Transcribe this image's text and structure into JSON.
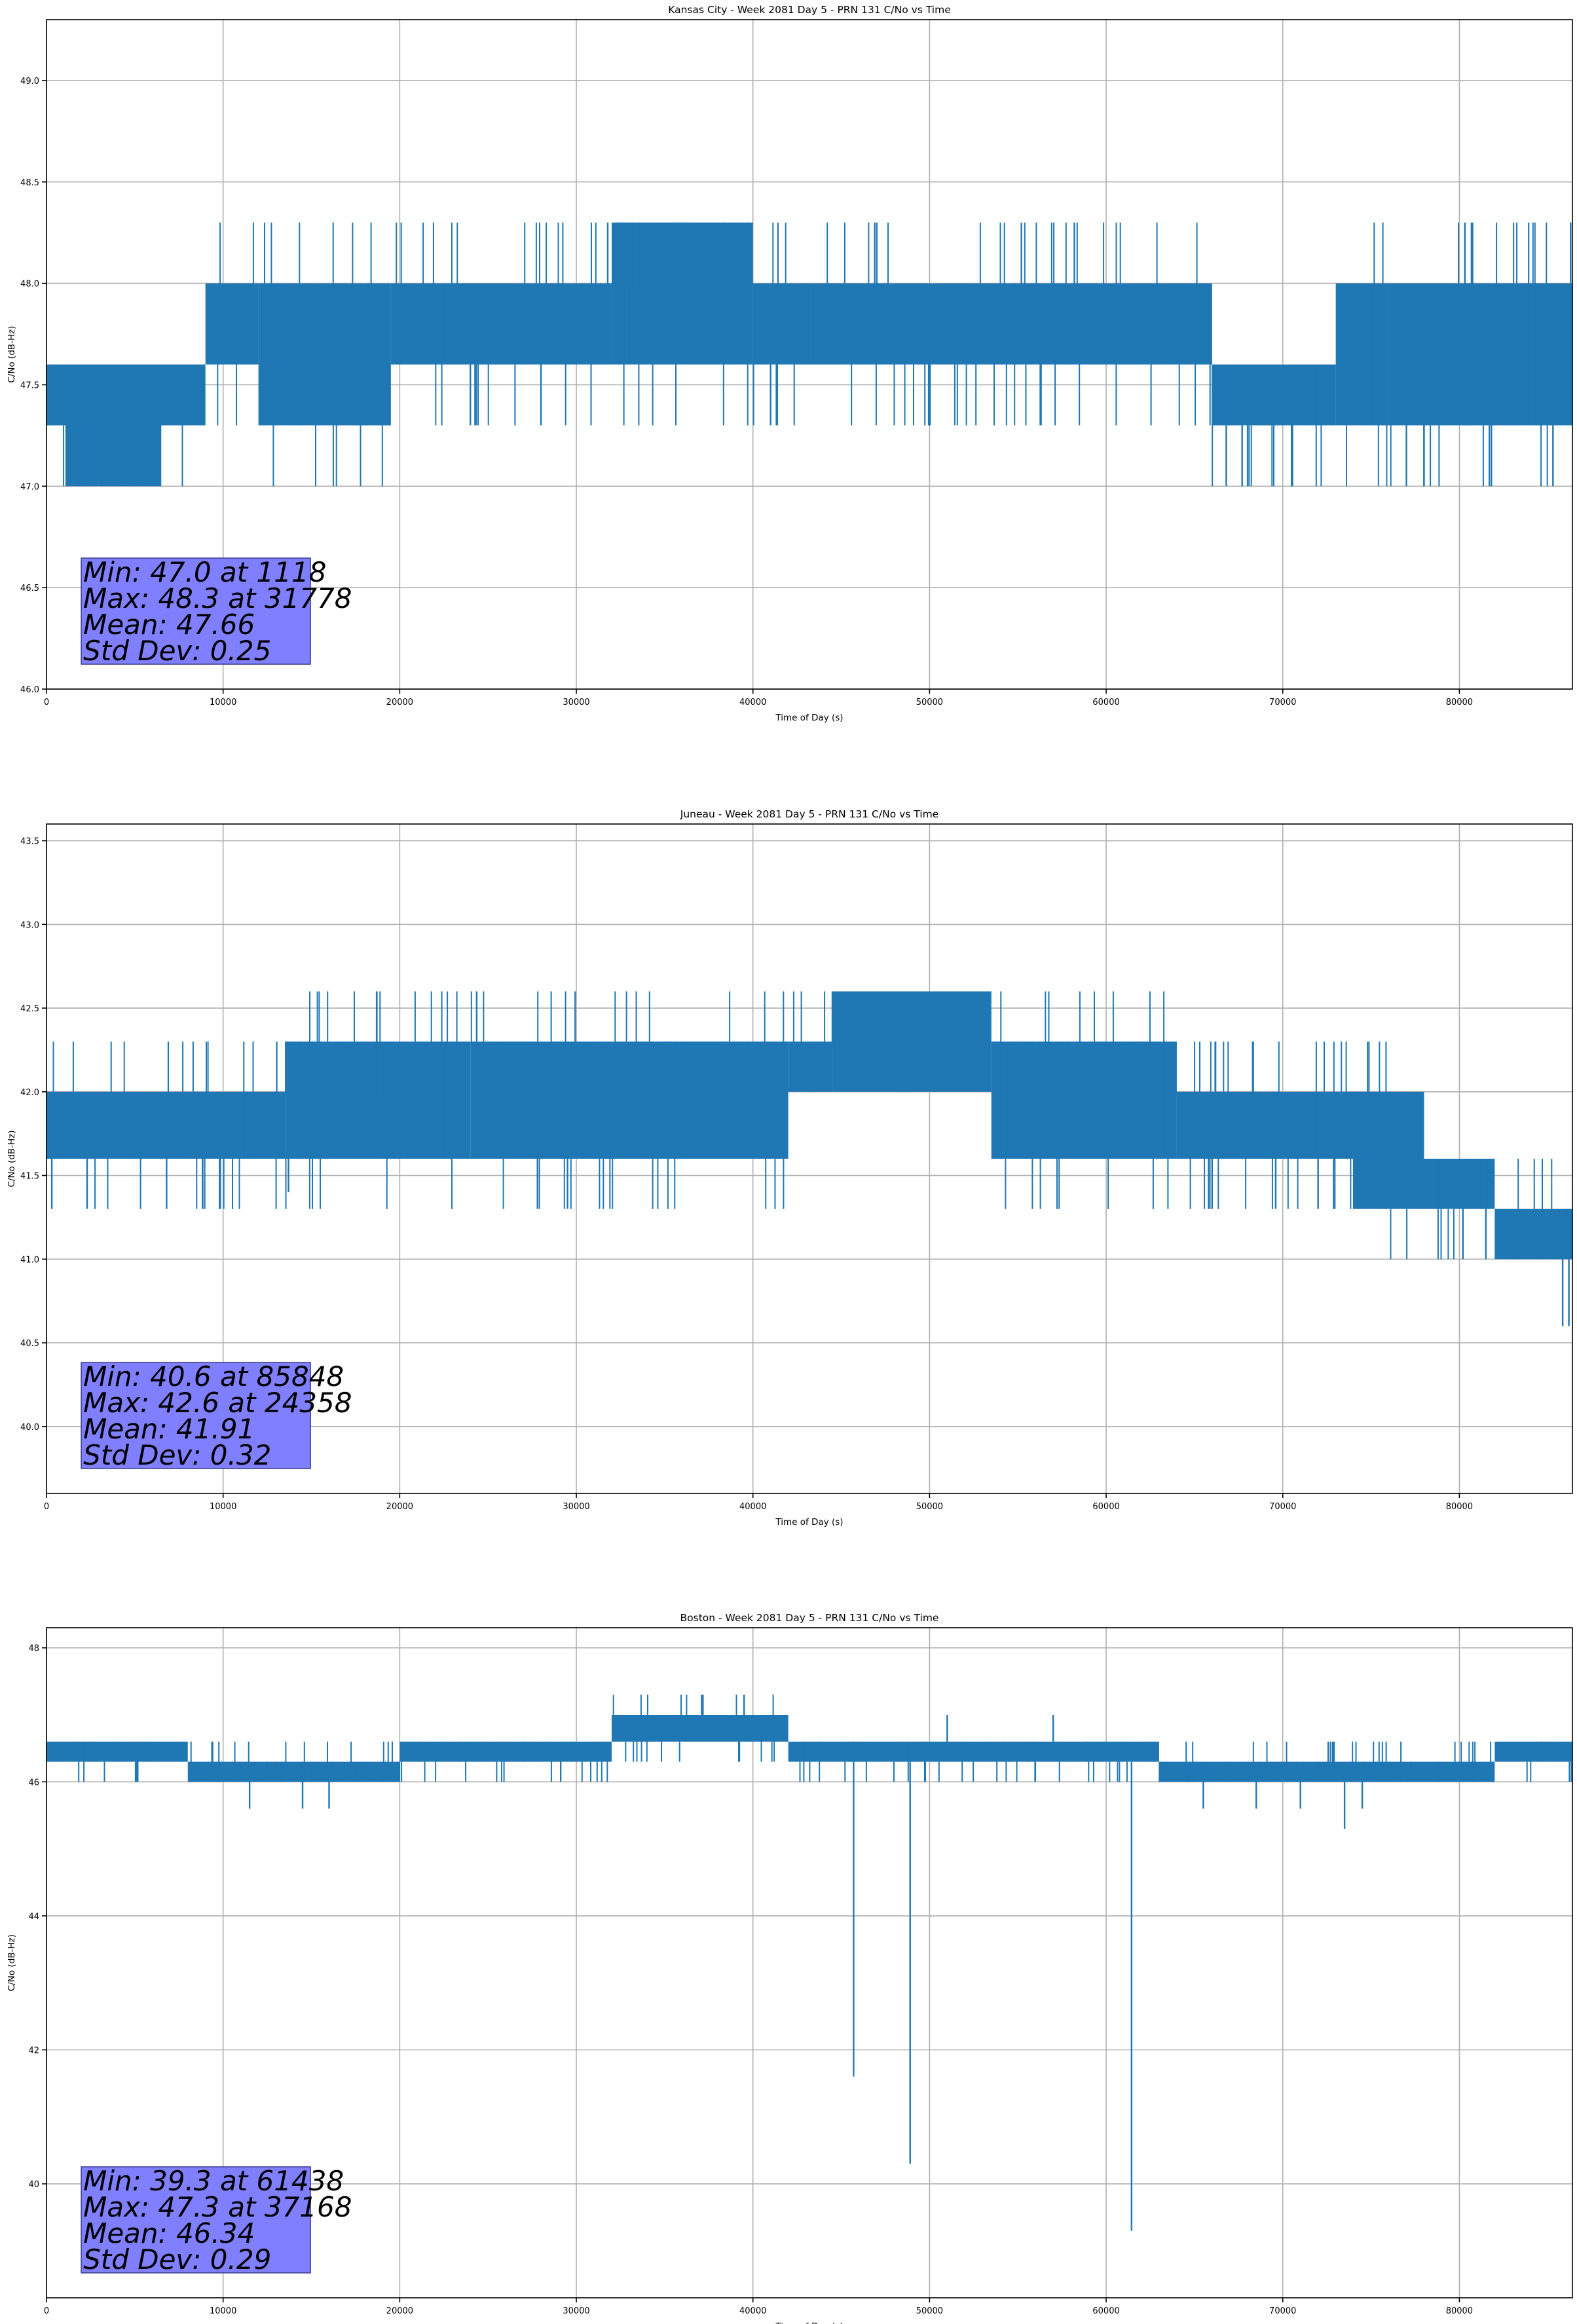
{
  "chart_data": [
    {
      "type": "line",
      "title": "Kansas City - Week 2081 Day 5 - PRN 131 C/No vs Time",
      "xlabel": "Time of Day (s)",
      "ylabel": "C/No (dB-Hz)",
      "xlim": [
        0,
        86400
      ],
      "ylim": [
        46.0,
        49.3
      ],
      "xticks": [
        0,
        10000,
        20000,
        30000,
        40000,
        50000,
        60000,
        70000,
        80000
      ],
      "yticks": [
        46.0,
        46.5,
        47.0,
        47.5,
        48.0,
        48.5,
        49.0
      ],
      "ytick_labels": [
        "46.0",
        "46.5",
        "47.0",
        "47.5",
        "48.0",
        "48.5",
        "49.0"
      ],
      "grid": true,
      "series_color": "#1f77b4",
      "levels": [
        47.0,
        47.3,
        47.6,
        48.0,
        48.3
      ],
      "segments": [
        {
          "x0": 0,
          "x1": 1100,
          "lo": 47.3,
          "hi": 47.6
        },
        {
          "x0": 1100,
          "x1": 6500,
          "lo": 47.0,
          "hi": 47.6
        },
        {
          "x0": 6500,
          "x1": 9000,
          "lo": 47.3,
          "hi": 47.6
        },
        {
          "x0": 9000,
          "x1": 12000,
          "lo": 47.6,
          "hi": 48.0
        },
        {
          "x0": 12000,
          "x1": 19500,
          "lo": 47.3,
          "hi": 48.0
        },
        {
          "x0": 19500,
          "x1": 32000,
          "lo": 47.6,
          "hi": 48.0
        },
        {
          "x0": 32000,
          "x1": 40000,
          "lo": 47.6,
          "hi": 48.3
        },
        {
          "x0": 40000,
          "x1": 66000,
          "lo": 47.6,
          "hi": 48.0
        },
        {
          "x0": 66000,
          "x1": 73000,
          "lo": 47.3,
          "hi": 47.6
        },
        {
          "x0": 73000,
          "x1": 76000,
          "lo": 47.3,
          "hi": 48.0
        },
        {
          "x0": 76000,
          "x1": 86400,
          "lo": 47.3,
          "hi": 48.0
        }
      ],
      "spikes": [
        {
          "x": 1118,
          "y": 47.0
        },
        {
          "x": 31778,
          "y": 48.3
        },
        {
          "x": 55200,
          "y": 48.3
        },
        {
          "x": 58200,
          "y": 48.3
        },
        {
          "x": 66800,
          "y": 47.0
        },
        {
          "x": 67700,
          "y": 47.0
        },
        {
          "x": 77000,
          "y": 47.0
        },
        {
          "x": 78000,
          "y": 47.0
        },
        {
          "x": 85300,
          "y": 47.0
        },
        {
          "x": 86300,
          "y": 48.3
        },
        {
          "x": 14000,
          "y": 47.3
        },
        {
          "x": 24000,
          "y": 47.3
        },
        {
          "x": 28000,
          "y": 47.3
        },
        {
          "x": 41000,
          "y": 47.3
        },
        {
          "x": 50000,
          "y": 47.3
        }
      ],
      "stats": {
        "min": "Min: 47.0 at 1118",
        "max": "Max: 48.3 at 31778",
        "mean": "Mean: 47.66",
        "std": "Std Dev: 0.25"
      }
    },
    {
      "type": "line",
      "title": "Juneau - Week 2081 Day 5 - PRN 131 C/No vs Time",
      "xlabel": "Time of Day (s)",
      "ylabel": "C/No (dB-Hz)",
      "xlim": [
        0,
        86400
      ],
      "ylim": [
        39.6,
        43.6
      ],
      "xticks": [
        0,
        10000,
        20000,
        30000,
        40000,
        50000,
        60000,
        70000,
        80000
      ],
      "yticks": [
        40.0,
        40.5,
        41.0,
        41.5,
        42.0,
        42.5,
        43.0,
        43.5
      ],
      "ytick_labels": [
        "40.0",
        "40.5",
        "41.0",
        "41.5",
        "42.0",
        "42.5",
        "43.0",
        "43.5"
      ],
      "grid": true,
      "series_color": "#1f77b4",
      "levels": [
        40.6,
        41.0,
        41.3,
        41.6,
        42.0,
        42.3,
        42.6
      ],
      "segments": [
        {
          "x0": 0,
          "x1": 13500,
          "lo": 41.6,
          "hi": 42.0
        },
        {
          "x0": 13500,
          "x1": 24000,
          "lo": 41.6,
          "hi": 42.3
        },
        {
          "x0": 24000,
          "x1": 42000,
          "lo": 41.6,
          "hi": 42.3
        },
        {
          "x0": 42000,
          "x1": 44500,
          "lo": 42.0,
          "hi": 42.3
        },
        {
          "x0": 44500,
          "x1": 53500,
          "lo": 42.0,
          "hi": 42.6
        },
        {
          "x0": 53500,
          "x1": 64000,
          "lo": 41.6,
          "hi": 42.3
        },
        {
          "x0": 64000,
          "x1": 74000,
          "lo": 41.6,
          "hi": 42.0
        },
        {
          "x0": 74000,
          "x1": 78000,
          "lo": 41.3,
          "hi": 42.0
        },
        {
          "x0": 78000,
          "x1": 82000,
          "lo": 41.3,
          "hi": 41.6
        },
        {
          "x0": 82000,
          "x1": 86400,
          "lo": 41.0,
          "hi": 41.3
        }
      ],
      "spikes": [
        {
          "x": 85848,
          "y": 40.6
        },
        {
          "x": 86200,
          "y": 40.6
        },
        {
          "x": 24358,
          "y": 42.6
        },
        {
          "x": 300,
          "y": 41.3
        },
        {
          "x": 2300,
          "y": 41.3
        },
        {
          "x": 6800,
          "y": 41.3
        },
        {
          "x": 9800,
          "y": 41.3
        },
        {
          "x": 13700,
          "y": 41.4
        },
        {
          "x": 27800,
          "y": 41.3
        },
        {
          "x": 29500,
          "y": 41.3
        },
        {
          "x": 80200,
          "y": 41.0
        },
        {
          "x": 81500,
          "y": 41.0
        },
        {
          "x": 69600,
          "y": 41.3
        },
        {
          "x": 72000,
          "y": 41.3
        },
        {
          "x": 66000,
          "y": 41.3
        }
      ],
      "stats": {
        "min": "Min: 40.6 at 85848",
        "max": "Max: 42.6 at 24358",
        "mean": "Mean: 41.91",
        "std": "Std Dev: 0.32"
      }
    },
    {
      "type": "line",
      "title": "Boston - Week 2081 Day 5 - PRN 131 C/No vs Time",
      "xlabel": "Time of Day (s)",
      "ylabel": "C/No (dB-Hz)",
      "xlim": [
        0,
        86400
      ],
      "ylim": [
        38.3,
        48.3
      ],
      "xticks": [
        0,
        10000,
        20000,
        30000,
        40000,
        50000,
        60000,
        70000,
        80000
      ],
      "yticks": [
        40,
        42,
        44,
        46,
        48
      ],
      "ytick_labels": [
        "40",
        "42",
        "44",
        "46",
        "48"
      ],
      "grid": true,
      "series_color": "#1f77b4",
      "levels": [
        39.3,
        41.6,
        45.6,
        46.0,
        46.3,
        46.6,
        47.0,
        47.3
      ],
      "segments": [
        {
          "x0": 0,
          "x1": 8000,
          "lo": 46.3,
          "hi": 46.6
        },
        {
          "x0": 8000,
          "x1": 20000,
          "lo": 46.0,
          "hi": 46.3
        },
        {
          "x0": 20000,
          "x1": 32000,
          "lo": 46.3,
          "hi": 46.6
        },
        {
          "x0": 32000,
          "x1": 42000,
          "lo": 46.6,
          "hi": 47.0
        },
        {
          "x0": 42000,
          "x1": 63000,
          "lo": 46.3,
          "hi": 46.6
        },
        {
          "x0": 63000,
          "x1": 82000,
          "lo": 46.0,
          "hi": 46.3
        },
        {
          "x0": 82000,
          "x1": 86400,
          "lo": 46.3,
          "hi": 46.6
        }
      ],
      "spikes": [
        {
          "x": 45700,
          "y": 41.6
        },
        {
          "x": 48900,
          "y": 40.3
        },
        {
          "x": 61438,
          "y": 39.3
        },
        {
          "x": 37168,
          "y": 47.3
        },
        {
          "x": 39500,
          "y": 47.3
        },
        {
          "x": 73500,
          "y": 45.3
        },
        {
          "x": 11500,
          "y": 45.6
        },
        {
          "x": 14500,
          "y": 45.6
        },
        {
          "x": 16000,
          "y": 45.6
        },
        {
          "x": 65500,
          "y": 45.6
        },
        {
          "x": 68500,
          "y": 45.6
        },
        {
          "x": 71000,
          "y": 45.6
        },
        {
          "x": 74500,
          "y": 45.6
        },
        {
          "x": 51000,
          "y": 47.0
        },
        {
          "x": 57000,
          "y": 47.0
        },
        {
          "x": 33500,
          "y": 47.0
        }
      ],
      "stats": {
        "min": "Min: 39.3 at 61438",
        "max": "Max: 47.3 at 37168",
        "mean": "Mean: 46.34",
        "std": "Std Dev: 0.29"
      }
    }
  ]
}
